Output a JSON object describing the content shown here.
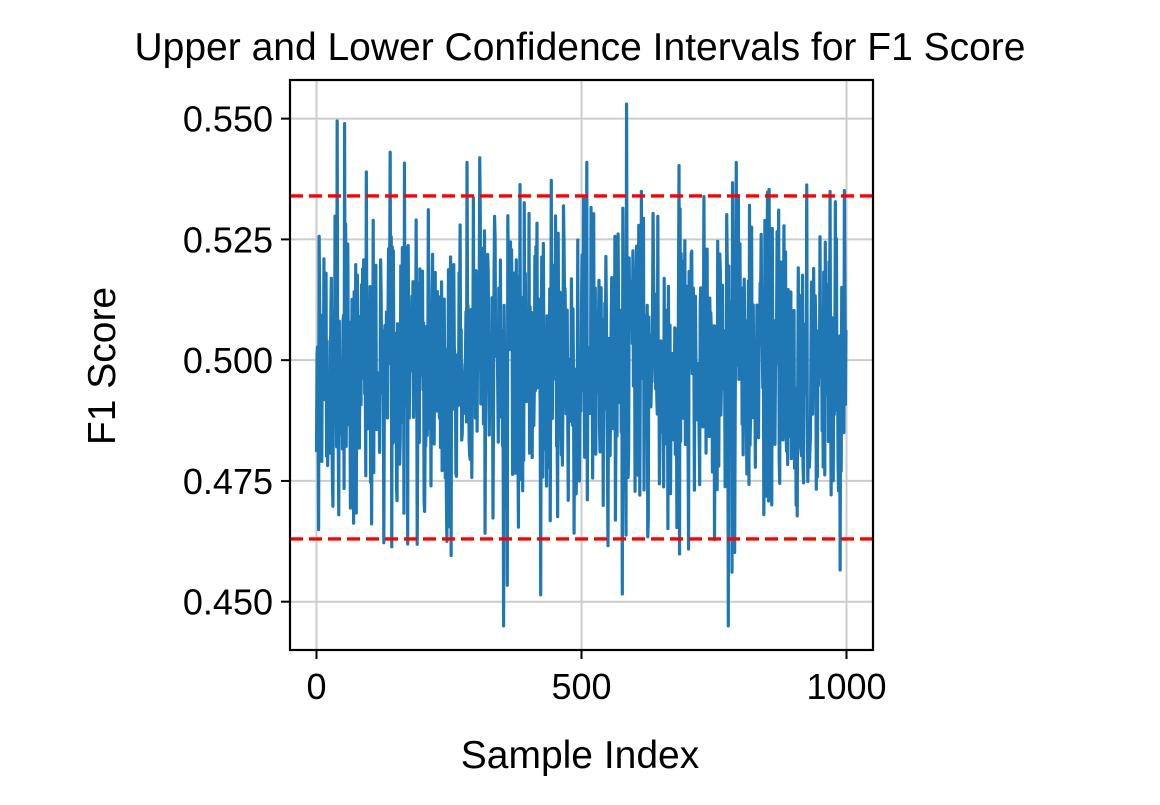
{
  "chart_data": {
    "type": "line",
    "title": "Upper and Lower Confidence Intervals for F1 Score",
    "xlabel": "Sample Index",
    "ylabel": "F1 Score",
    "xlim": [
      -50,
      1050
    ],
    "ylim": [
      0.44,
      0.558
    ],
    "xticks": [
      0,
      500,
      1000
    ],
    "xtick_labels": [
      "0",
      "500",
      "1000"
    ],
    "yticks": [
      0.45,
      0.475,
      0.5,
      0.525,
      0.55
    ],
    "ytick_labels": [
      "0.450",
      "0.475",
      "0.500",
      "0.525",
      "0.550"
    ],
    "grid": true,
    "series": [
      {
        "points": 1000,
        "approx_range": [
          0.445,
          0.553
        ],
        "color": "#1f77b4"
      }
    ],
    "reference_lines": [
      {
        "y": 0.534,
        "color": "#ff0000",
        "style": "dashed"
      },
      {
        "y": 0.463,
        "color": "#ff0000",
        "style": "dashed"
      }
    ]
  }
}
